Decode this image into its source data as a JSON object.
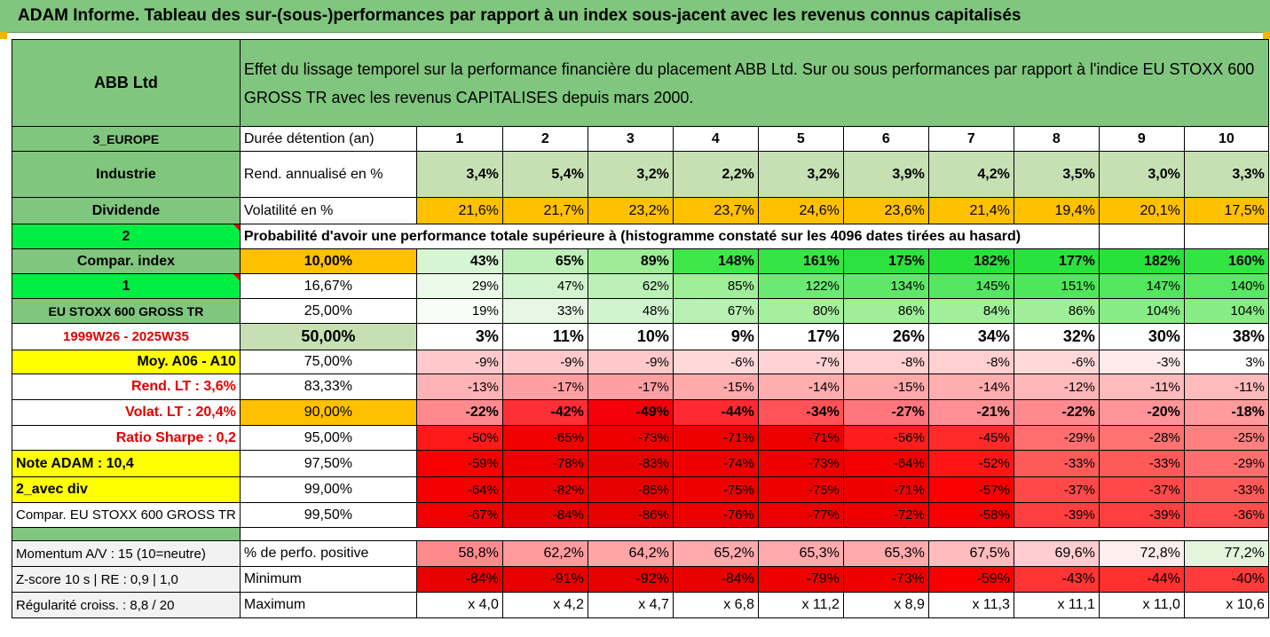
{
  "title": "ADAM Informe. Tableau des sur-(sous-)performances par rapport à un index sous-jacent avec les revenus connus capitalisés",
  "header": {
    "company": "ABB Ltd",
    "description": "Effet du lissage temporel sur la performance financière du placement ABB Ltd. Sur ou sous performances par rapport à l'indice EU STOXX 600 GROSS TR avec les revenus CAPITALISES depuis mars 2000."
  },
  "left_labels": {
    "region": "3_EUROPE",
    "sector": "Industrie",
    "dividend": "Dividende",
    "num2": "2",
    "compar_index": "Compar. index",
    "num1": "1",
    "index_name": "EU STOXX 600 GROSS TR",
    "period": "1999W26 - 2025W35",
    "moy": "Moy. A06 - A10",
    "rend_lt": "Rend. LT :   3,6%",
    "volat_lt": "Volat. LT :   20,4%",
    "sharpe": "Ratio Sharpe :   0,2",
    "note": "Note ADAM : 10,4",
    "avec_div": "2_avec div",
    "compar_full": "Compar. EU STOXX 600 GROSS TR",
    "momentum": "Momentum A/V : 15 (10=neutre)",
    "zscore": "Z-score 10 s  |  RE : 0,9  |  1,0",
    "regularite": "Régularité croiss. : 8,8 / 20"
  },
  "duree_label": "Durée détention (an)",
  "years": [
    "1",
    "2",
    "3",
    "4",
    "5",
    "6",
    "7",
    "8",
    "9",
    "10"
  ],
  "rend": {
    "label": "Rend. annualisé en %",
    "values": [
      "3,4%",
      "5,4%",
      "3,2%",
      "2,2%",
      "3,2%",
      "3,9%",
      "4,2%",
      "3,5%",
      "3,0%",
      "3,3%"
    ]
  },
  "vol": {
    "label": "Volatilité en %",
    "values": [
      "21,6%",
      "21,7%",
      "23,2%",
      "23,7%",
      "24,6%",
      "23,6%",
      "21,4%",
      "19,4%",
      "20,1%",
      "17,5%"
    ]
  },
  "proba_label": "Probabilité d'avoir une performance totale supérieure à (histogramme constaté sur les 4096 dates tirées au hasard)",
  "pct_rows": [
    {
      "pct": "10,00%",
      "values": [
        "43%",
        "65%",
        "89%",
        "148%",
        "161%",
        "175%",
        "182%",
        "177%",
        "182%",
        "160%"
      ],
      "colors": [
        "#d6f5d3",
        "#bdf0b8",
        "#9ded97",
        "#3fe64a",
        "#34e544",
        "#2be23e",
        "#28e13b",
        "#2ae23d",
        "#28e13b",
        "#33e542"
      ]
    },
    {
      "pct": "16,67%",
      "values": [
        "29%",
        "47%",
        "62%",
        "85%",
        "122%",
        "134%",
        "145%",
        "151%",
        "147%",
        "140%"
      ],
      "colors": [
        "#ecfaea",
        "#d2f4cf",
        "#bdf0b8",
        "#9fee99",
        "#6be972",
        "#5fe868",
        "#55e75f",
        "#4de759",
        "#52e75c",
        "#58e862"
      ]
    },
    {
      "pct": "25,00%",
      "values": [
        "19%",
        "33%",
        "48%",
        "67%",
        "80%",
        "86%",
        "84%",
        "86%",
        "104%",
        "104%"
      ],
      "colors": [
        "#f8fdf7",
        "#e6f8e4",
        "#d1f3ce",
        "#b8f0b3",
        "#a6ef9f",
        "#9fee99",
        "#a1ee9b",
        "#9fee99",
        "#88ec86",
        "#88ec86"
      ]
    },
    {
      "pct": "50,00%",
      "values": [
        "3%",
        "11%",
        "10%",
        "9%",
        "17%",
        "26%",
        "34%",
        "32%",
        "30%",
        "38%"
      ],
      "colors": [
        "#ffffff",
        "#ffffff",
        "#ffffff",
        "#ffffff",
        "#ffffff",
        "#ffffff",
        "#ffffff",
        "#ffffff",
        "#ffffff",
        "#ffffff"
      ]
    },
    {
      "pct": "75,00%",
      "values": [
        "-9%",
        "-9%",
        "-9%",
        "-6%",
        "-7%",
        "-8%",
        "-8%",
        "-6%",
        "-3%",
        "3%"
      ],
      "colors": [
        "#ffc9cb",
        "#ffc9cb",
        "#ffc9cb",
        "#ffd9da",
        "#ffd3d5",
        "#ffcfd1",
        "#ffcfd1",
        "#ffd9da",
        "#ffebec",
        "#ffffff"
      ]
    },
    {
      "pct": "83,33%",
      "values": [
        "-13%",
        "-17%",
        "-17%",
        "-15%",
        "-14%",
        "-15%",
        "-14%",
        "-12%",
        "-11%",
        "-11%"
      ],
      "colors": [
        "#ffb2b4",
        "#ff9fa2",
        "#ff9fa2",
        "#ffa9ab",
        "#ffadaf",
        "#ffa9ab",
        "#ffadaf",
        "#ffb6b8",
        "#ffbabc",
        "#ffbabc"
      ]
    },
    {
      "pct": "90,00%",
      "values": [
        "-22%",
        "-42%",
        "-49%",
        "-44%",
        "-34%",
        "-27%",
        "-21%",
        "-22%",
        "-20%",
        "-18%"
      ],
      "colors": [
        "#ff8a8e",
        "#ff2f36",
        "#f5000a",
        "#ff2a31",
        "#ff5359",
        "#ff777c",
        "#ff8f93",
        "#ff8a8e",
        "#ff9498",
        "#ff9a9d"
      ]
    },
    {
      "pct": "95,00%",
      "values": [
        "-50%",
        "-65%",
        "-73%",
        "-71%",
        "-71%",
        "-56%",
        "-45%",
        "-29%",
        "-28%",
        "-25%"
      ],
      "colors": [
        "#ff1a1a",
        "#f30000",
        "#ee0000",
        "#ef0000",
        "#ef0000",
        "#ff1d1d",
        "#ff2a2a",
        "#ff6e6e",
        "#ff7272",
        "#ff8080"
      ]
    },
    {
      "pct": "97,50%",
      "values": [
        "-59%",
        "-78%",
        "-83%",
        "-74%",
        "-73%",
        "-64%",
        "-52%",
        "-33%",
        "-33%",
        "-29%"
      ],
      "colors": [
        "#f80000",
        "#ec0000",
        "#e90000",
        "#ee0000",
        "#ee0000",
        "#f40000",
        "#ff1515",
        "#ff5a5a",
        "#ff5a5a",
        "#ff6e6e"
      ]
    },
    {
      "pct": "99,00%",
      "values": [
        "-64%",
        "-82%",
        "-85%",
        "-75%",
        "-75%",
        "-71%",
        "-57%",
        "-37%",
        "-37%",
        "-33%"
      ],
      "colors": [
        "#f40000",
        "#ea0000",
        "#e80000",
        "#ed0000",
        "#ed0000",
        "#ef0000",
        "#fa0000",
        "#ff4848",
        "#ff4848",
        "#ff5a5a"
      ]
    },
    {
      "pct": "99,50%",
      "values": [
        "-67%",
        "-84%",
        "-86%",
        "-76%",
        "-77%",
        "-72%",
        "-58%",
        "-39%",
        "-39%",
        "-36%"
      ],
      "colors": [
        "#f20000",
        "#e90000",
        "#e80000",
        "#ed0000",
        "#ec0000",
        "#ef0000",
        "#f90000",
        "#ff3f3f",
        "#ff3f3f",
        "#ff4d4d"
      ]
    }
  ],
  "positive": {
    "label": "% de perfo. positive",
    "values": [
      "58,8%",
      "62,2%",
      "64,2%",
      "65,2%",
      "65,3%",
      "65,3%",
      "67,5%",
      "69,6%",
      "72,8%",
      "77,2%"
    ],
    "colors": [
      "#ff8a8e",
      "#ff9a9d",
      "#ffa5a8",
      "#ffabad",
      "#ffabad",
      "#ffabad",
      "#ffbbbd",
      "#ffcdcf",
      "#ffeeee",
      "#e3f6dd"
    ]
  },
  "minimum": {
    "label": "Minimum",
    "values": [
      "-84%",
      "-91%",
      "-92%",
      "-84%",
      "-79%",
      "-73%",
      "-59%",
      "-43%",
      "-44%",
      "-40%"
    ],
    "colors": [
      "#e90000",
      "#e60000",
      "#e60000",
      "#e90000",
      "#ec0000",
      "#ee0000",
      "#f80000",
      "#ff3434",
      "#ff3030",
      "#ff3b3b"
    ]
  },
  "maximum": {
    "label": "Maximum",
    "values": [
      "x 4,0",
      "x 4,2",
      "x 4,7",
      "x 6,8",
      "x 11,2",
      "x 8,9",
      "x 11,3",
      "x 11,1",
      "x 11,0",
      "x 10,6"
    ]
  },
  "colors": {
    "header_green": "#80c67e",
    "light_green": "#c6e0b4",
    "orange": "#ffc000",
    "bright_green": "#00ee44",
    "yellow": "#ffff00",
    "red_text": "#e00000"
  }
}
